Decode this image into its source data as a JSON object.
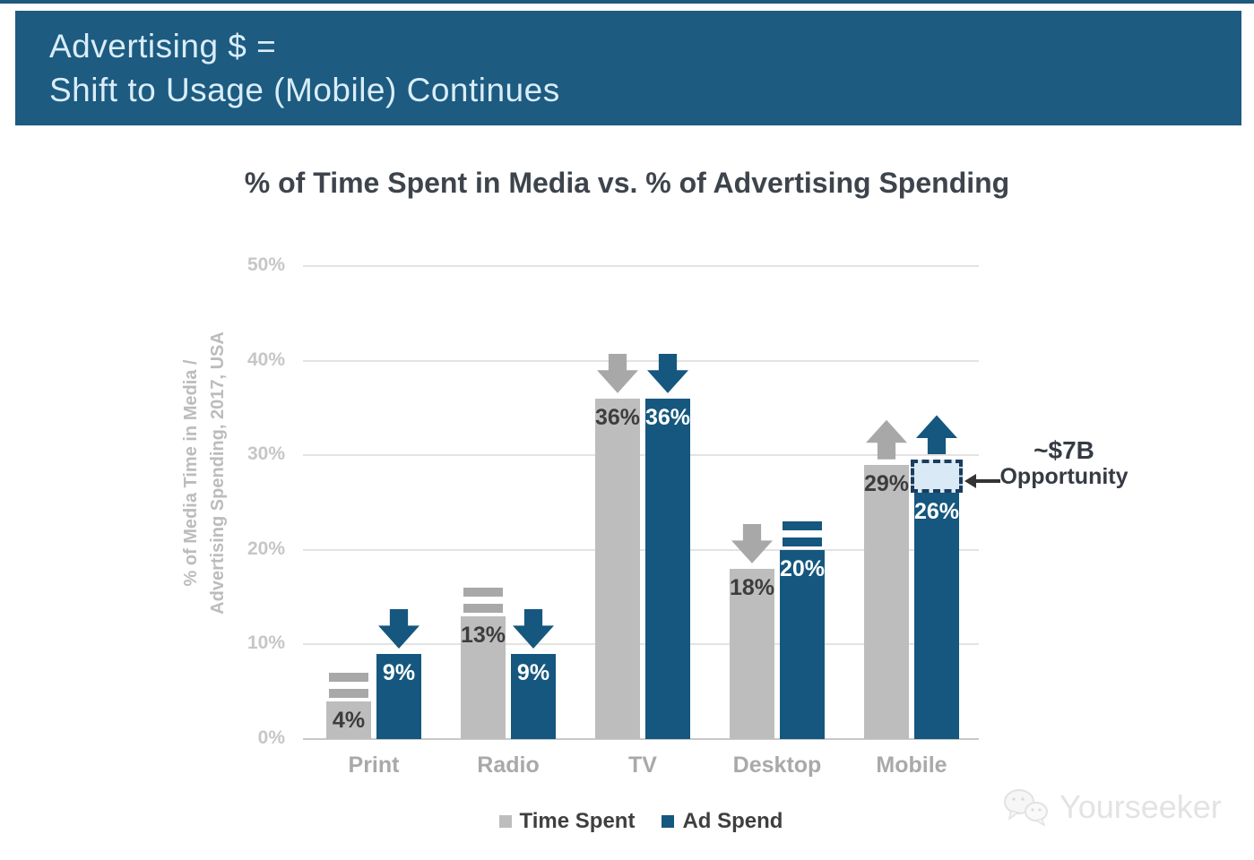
{
  "header": {
    "title_line1": "Advertising $ =",
    "title_line2": "Shift to Usage (Mobile) Continues"
  },
  "chart_data": {
    "type": "bar",
    "title": "% of Time Spent in Media vs. % of Advertising Spending",
    "ylabel": "% of Media Time in Media / Advertising Spending, 2017, USA",
    "ylabel_lines": [
      "% of Media Time in Media /",
      "Advertising Spending, 2017, USA"
    ],
    "categories": [
      "Print",
      "Radio",
      "TV",
      "Desktop",
      "Mobile"
    ],
    "series": [
      {
        "name": "Time Spent",
        "color": "#bdbdbd",
        "indicator_color": "#a8a8a8",
        "label_color": "#3d3d3d",
        "values": [
          4,
          13,
          36,
          18,
          29
        ],
        "trends": [
          "flat",
          "flat",
          "down",
          "down",
          "up"
        ]
      },
      {
        "name": "Ad Spend",
        "color": "#15577e",
        "indicator_color": "#15577e",
        "label_color": "#ffffff",
        "values": [
          9,
          9,
          36,
          20,
          26
        ],
        "trends": [
          "down",
          "down",
          "down",
          "flat",
          "up"
        ]
      }
    ],
    "value_suffix": "%",
    "yticks": [
      0,
      10,
      20,
      30,
      40,
      50
    ],
    "ytick_suffix": "%",
    "ylim": [
      0,
      50
    ],
    "grid": true,
    "legend_position": "bottom"
  },
  "annotation": {
    "line1": "~$7B",
    "line2": "Opportunity",
    "target_series": 1,
    "target_category": 4,
    "box_from_value": 26,
    "box_to_value": 29.5,
    "box_fill": "#d9eaf6",
    "box_border": "#1c3c5e"
  },
  "watermark": {
    "text": "Yourseeker"
  }
}
